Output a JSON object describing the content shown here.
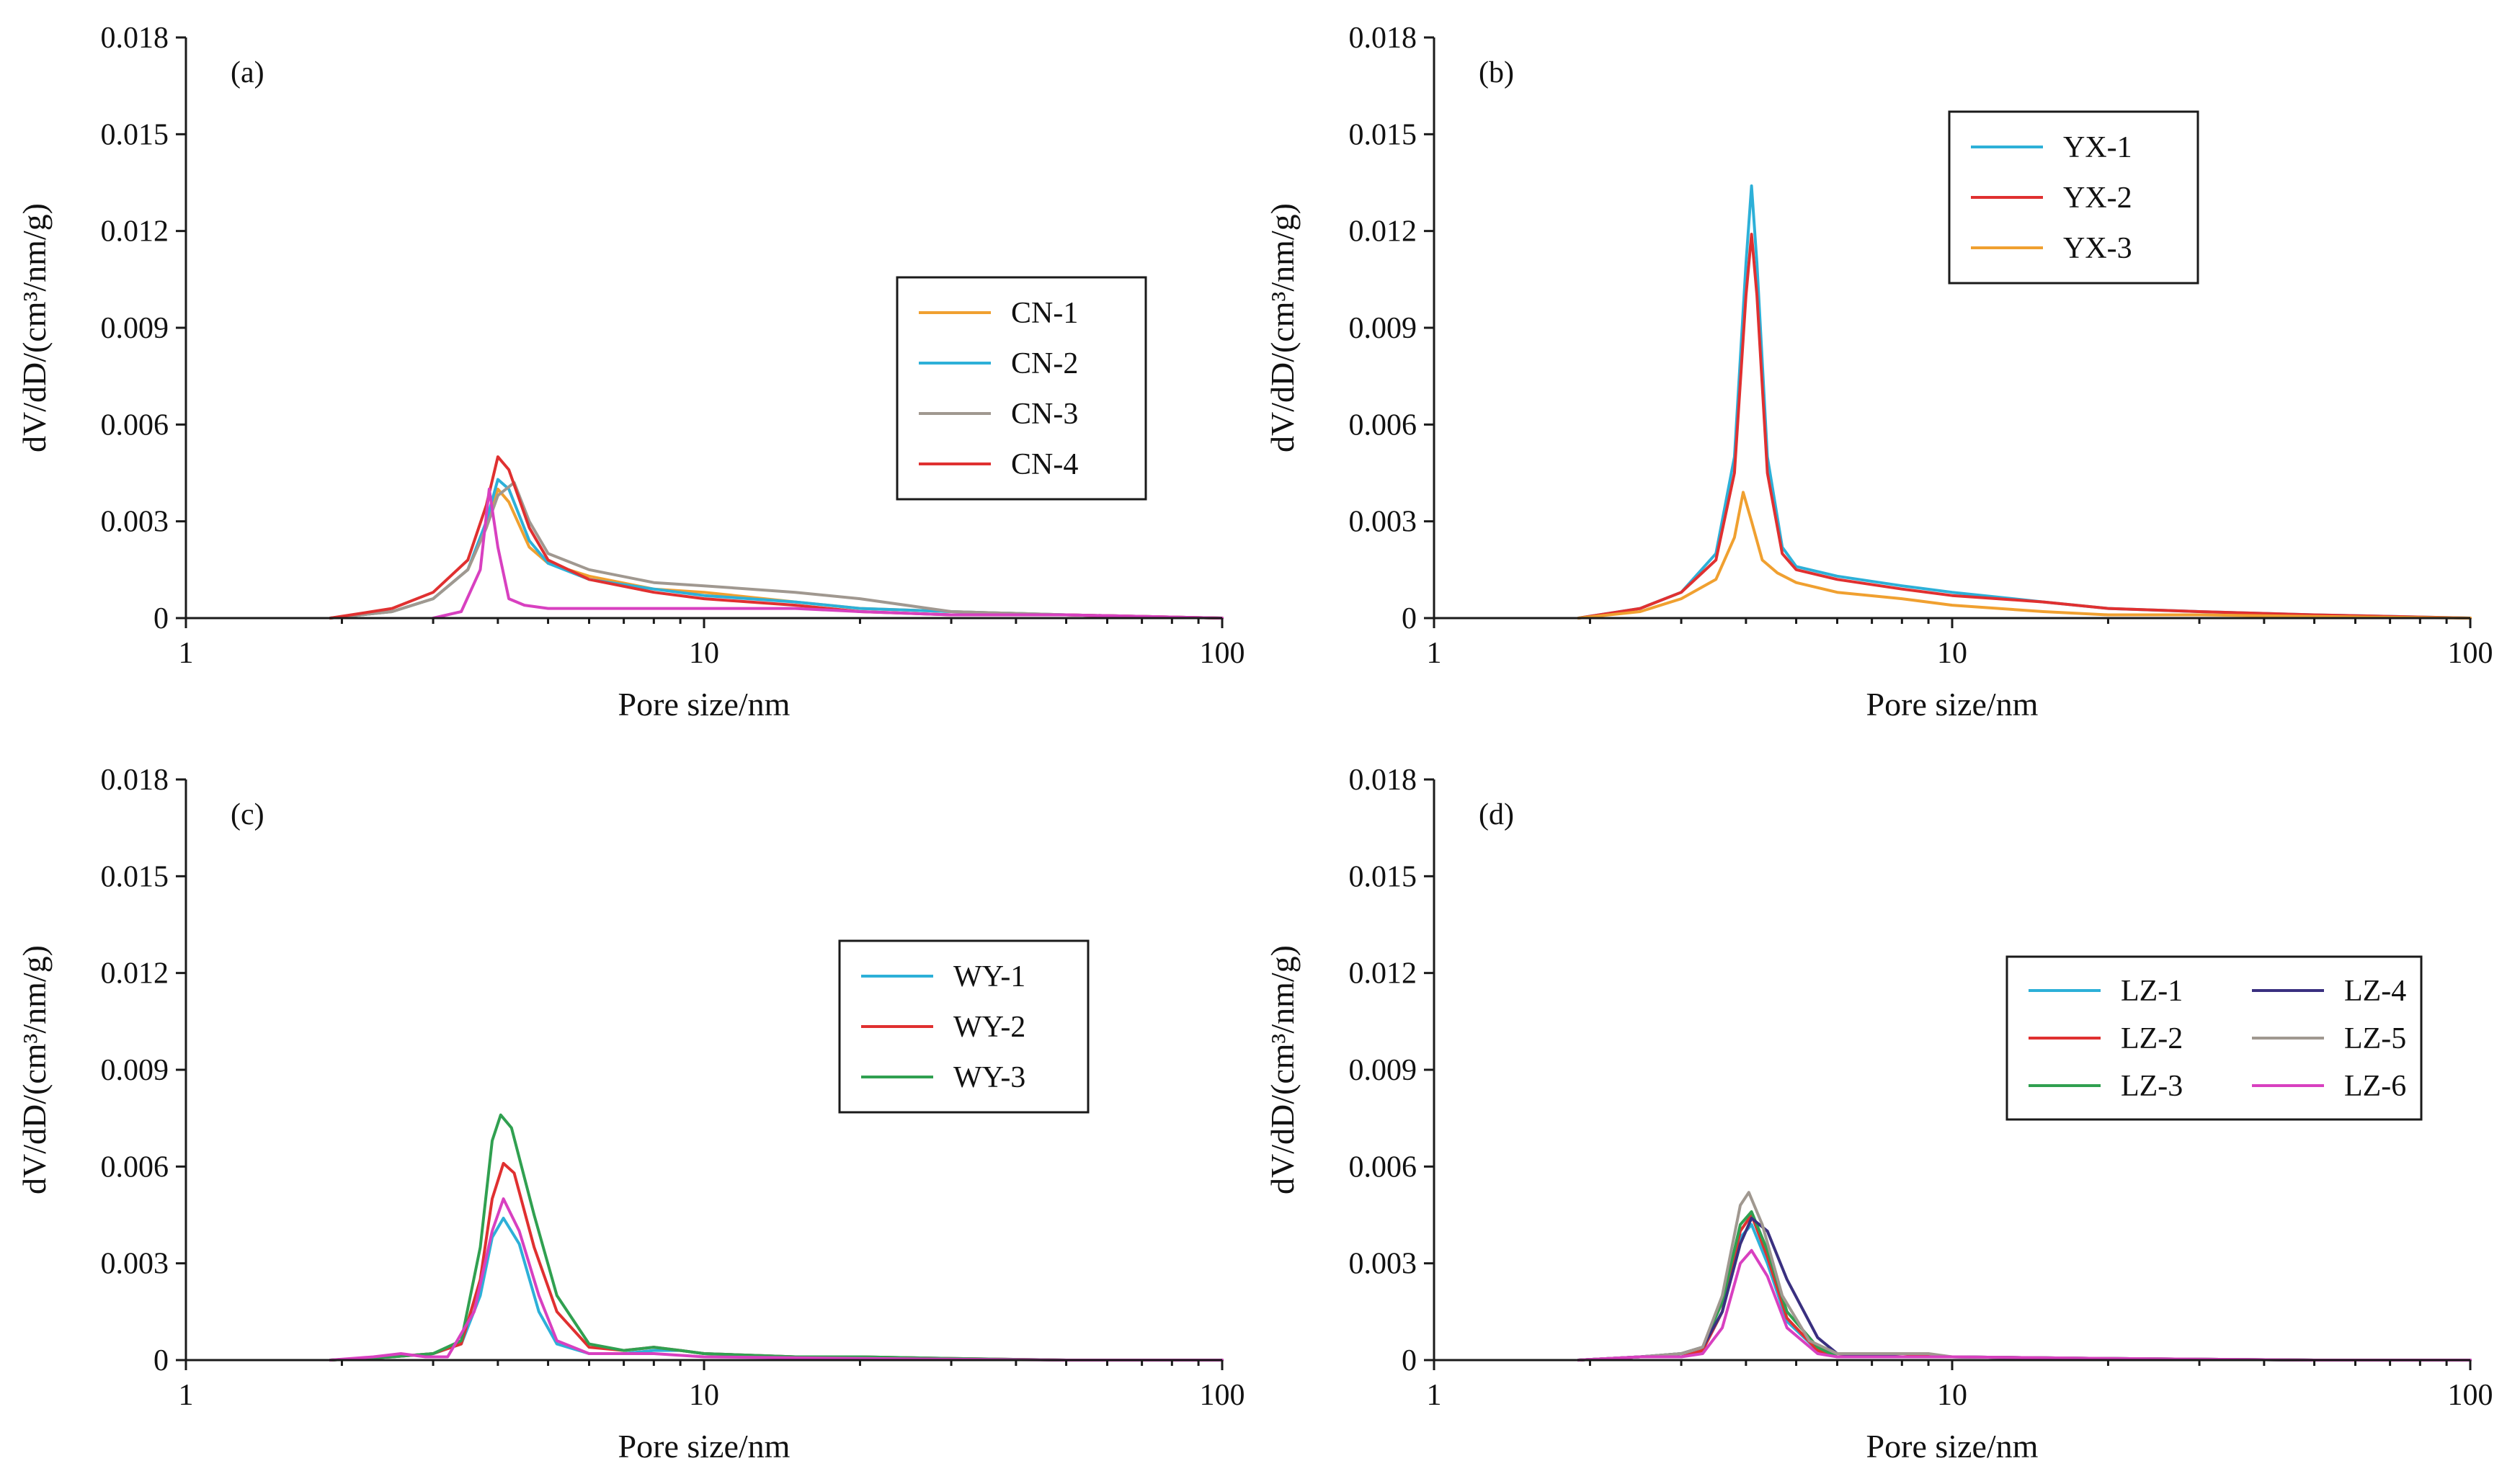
{
  "chart_data": [
    {
      "type": "line",
      "panel": "(a)",
      "xlabel": "Pore size/nm",
      "ylabel": "dV/dD/(cm³/nm/g)",
      "x_scale": "log",
      "xlim": [
        1,
        100
      ],
      "ylim": [
        0,
        0.018
      ],
      "x_ticks": [
        "1",
        "10",
        "100"
      ],
      "y_ticks": [
        "0",
        "0.003",
        "0.006",
        "0.009",
        "0.012",
        "0.015",
        "0.018"
      ],
      "legend_position": "center-right",
      "legend_columns": 1,
      "series": [
        {
          "name": "CN-1",
          "color": "#F0A030",
          "x": [
            1.9,
            2.5,
            3.0,
            3.5,
            3.8,
            4.0,
            4.2,
            4.6,
            5.0,
            6.0,
            8.0,
            10,
            15,
            20,
            30,
            50,
            100
          ],
          "y": [
            0,
            0.0002,
            0.0006,
            0.0015,
            0.0028,
            0.004,
            0.0036,
            0.0022,
            0.0017,
            0.0013,
            0.0009,
            0.0008,
            0.0005,
            0.0003,
            0.0002,
            0.0001,
            0
          ]
        },
        {
          "name": "CN-2",
          "color": "#2DB0D8",
          "x": [
            1.9,
            2.5,
            3.0,
            3.5,
            3.8,
            4.0,
            4.2,
            4.6,
            5.0,
            6.0,
            8.0,
            10,
            15,
            20,
            30,
            50,
            100
          ],
          "y": [
            0,
            0.0002,
            0.0006,
            0.0015,
            0.003,
            0.0043,
            0.004,
            0.0024,
            0.0017,
            0.0012,
            0.0009,
            0.0007,
            0.0005,
            0.0003,
            0.0002,
            0.0001,
            0
          ]
        },
        {
          "name": "CN-3",
          "color": "#A09890",
          "x": [
            1.9,
            2.5,
            3.0,
            3.5,
            3.8,
            4.0,
            4.3,
            4.6,
            5.0,
            6.0,
            8.0,
            10,
            15,
            20,
            30,
            50,
            100
          ],
          "y": [
            0,
            0.0002,
            0.0006,
            0.0015,
            0.0028,
            0.0038,
            0.0042,
            0.003,
            0.002,
            0.0015,
            0.0011,
            0.001,
            0.0008,
            0.0006,
            0.0002,
            0.0001,
            0
          ]
        },
        {
          "name": "CN-4",
          "color": "#E03030",
          "x": [
            1.9,
            2.5,
            3.0,
            3.5,
            3.8,
            4.0,
            4.2,
            4.6,
            5.0,
            6.0,
            8.0,
            10,
            15,
            20,
            30,
            50,
            100
          ],
          "y": [
            0,
            0.0003,
            0.0008,
            0.0018,
            0.0035,
            0.005,
            0.0046,
            0.0028,
            0.0018,
            0.0012,
            0.0008,
            0.0006,
            0.0004,
            0.0002,
            0.0001,
            0.0001,
            0
          ]
        },
        {
          "name": "",
          "color": "#D840C0",
          "x": [
            3.0,
            3.4,
            3.7,
            3.85,
            4.0,
            4.2,
            4.5,
            5.0,
            6.0,
            8.0,
            10,
            15,
            20,
            30,
            50,
            100
          ],
          "y": [
            0,
            0.0002,
            0.0015,
            0.004,
            0.0022,
            0.0006,
            0.0004,
            0.0003,
            0.0003,
            0.0003,
            0.0003,
            0.0003,
            0.0002,
            0.0001,
            0.0001,
            0
          ]
        }
      ]
    },
    {
      "type": "line",
      "panel": "(b)",
      "xlabel": "Pore size/nm",
      "ylabel": "dV/dD/(cm³/nm/g)",
      "x_scale": "log",
      "xlim": [
        1,
        100
      ],
      "ylim": [
        0,
        0.018
      ],
      "x_ticks": [
        "1",
        "10",
        "100"
      ],
      "y_ticks": [
        "0",
        "0.003",
        "0.006",
        "0.009",
        "0.012",
        "0.015",
        "0.018"
      ],
      "legend_position": "top-right",
      "legend_columns": 1,
      "series": [
        {
          "name": "YX-1",
          "color": "#2DB0D8",
          "x": [
            1.9,
            2.5,
            3.0,
            3.5,
            3.8,
            4.0,
            4.1,
            4.2,
            4.4,
            4.7,
            5.0,
            6.0,
            8.0,
            10,
            15,
            20,
            30,
            50,
            100
          ],
          "y": [
            0,
            0.0003,
            0.0008,
            0.002,
            0.005,
            0.011,
            0.0134,
            0.011,
            0.005,
            0.0022,
            0.0016,
            0.0013,
            0.001,
            0.0008,
            0.0005,
            0.0003,
            0.0002,
            0.0001,
            0
          ]
        },
        {
          "name": "YX-2",
          "color": "#E03030",
          "x": [
            1.9,
            2.5,
            3.0,
            3.5,
            3.8,
            4.0,
            4.1,
            4.2,
            4.4,
            4.7,
            5.0,
            6.0,
            8.0,
            10,
            15,
            20,
            30,
            50,
            100
          ],
          "y": [
            0,
            0.0003,
            0.0008,
            0.0018,
            0.0045,
            0.01,
            0.0119,
            0.01,
            0.0045,
            0.002,
            0.0015,
            0.0012,
            0.0009,
            0.0007,
            0.0005,
            0.0003,
            0.0002,
            0.0001,
            0
          ]
        },
        {
          "name": "YX-3",
          "color": "#F0A030",
          "x": [
            1.9,
            2.5,
            3.0,
            3.5,
            3.8,
            3.95,
            4.1,
            4.3,
            4.6,
            5.0,
            6.0,
            8.0,
            10,
            15,
            20,
            30,
            50,
            100
          ],
          "y": [
            0,
            0.0002,
            0.0006,
            0.0012,
            0.0025,
            0.0039,
            0.003,
            0.0018,
            0.0014,
            0.0011,
            0.0008,
            0.0006,
            0.0004,
            0.0002,
            0.0001,
            0.0001,
            5e-05,
            0
          ]
        }
      ]
    },
    {
      "type": "line",
      "panel": "(c)",
      "xlabel": "Pore size/nm",
      "ylabel": "dV/dD/(cm³/nm/g)",
      "x_scale": "log",
      "xlim": [
        1,
        100
      ],
      "ylim": [
        0,
        0.018
      ],
      "x_ticks": [
        "1",
        "10",
        "100"
      ],
      "y_ticks": [
        "0",
        "0.003",
        "0.006",
        "0.009",
        "0.012",
        "0.015",
        "0.018"
      ],
      "legend_position": "center-right",
      "legend_columns": 1,
      "series": [
        {
          "name": "WY-1",
          "color": "#2DB0D8",
          "x": [
            1.9,
            2.5,
            3.0,
            3.4,
            3.7,
            3.9,
            4.1,
            4.4,
            4.8,
            5.2,
            6.0,
            7.0,
            8.0,
            9.0,
            10,
            15,
            20,
            30,
            50,
            100
          ],
          "y": [
            0,
            0.0001,
            0.0002,
            0.0005,
            0.002,
            0.0038,
            0.0044,
            0.0036,
            0.0015,
            0.0005,
            0.0002,
            0.0002,
            0.0003,
            0.0003,
            0.0002,
            0.0001,
            0.0001,
            5e-05,
            0,
            0
          ]
        },
        {
          "name": "WY-2",
          "color": "#E03030",
          "x": [
            1.9,
            2.5,
            3.0,
            3.4,
            3.7,
            3.9,
            4.1,
            4.3,
            4.7,
            5.2,
            6.0,
            7.0,
            8.0,
            9.0,
            10,
            15,
            20,
            30,
            50,
            100
          ],
          "y": [
            0,
            0.0001,
            0.0002,
            0.0005,
            0.0025,
            0.005,
            0.0061,
            0.0058,
            0.0035,
            0.0015,
            0.0004,
            0.0003,
            0.0004,
            0.0003,
            0.0002,
            0.0001,
            0.0001,
            5e-05,
            0,
            0
          ]
        },
        {
          "name": "WY-3",
          "color": "#30A050",
          "x": [
            1.9,
            2.5,
            3.0,
            3.4,
            3.7,
            3.9,
            4.05,
            4.25,
            4.7,
            5.2,
            6.0,
            7.0,
            8.0,
            9.0,
            10,
            15,
            20,
            30,
            50,
            100
          ],
          "y": [
            0,
            0.0001,
            0.0002,
            0.0006,
            0.0035,
            0.0068,
            0.0076,
            0.0072,
            0.0045,
            0.002,
            0.0005,
            0.0003,
            0.0004,
            0.0003,
            0.0002,
            0.0001,
            0.0001,
            5e-05,
            0,
            0
          ]
        },
        {
          "name": "",
          "color": "#D840C0",
          "x": [
            1.9,
            2.3,
            2.6,
            2.9,
            3.2,
            3.6,
            3.9,
            4.1,
            4.4,
            4.8,
            5.2,
            6.0,
            8.0,
            10,
            20,
            50,
            100
          ],
          "y": [
            0,
            0.0001,
            0.0002,
            0.0001,
            0.0001,
            0.0015,
            0.004,
            0.005,
            0.004,
            0.002,
            0.0006,
            0.0002,
            0.0002,
            0.0001,
            5e-05,
            0,
            0
          ]
        }
      ]
    },
    {
      "type": "line",
      "panel": "(d)",
      "xlabel": "Pore size/nm",
      "ylabel": "dV/dD/(cm³/nm/g)",
      "x_scale": "log",
      "xlim": [
        1,
        100
      ],
      "ylim": [
        0,
        0.018
      ],
      "x_ticks": [
        "1",
        "10",
        "100"
      ],
      "y_ticks": [
        "0",
        "0.003",
        "0.006",
        "0.009",
        "0.012",
        "0.015",
        "0.018"
      ],
      "legend_position": "center-right",
      "legend_columns": 2,
      "series": [
        {
          "name": "LZ-1",
          "color": "#2DB0D8",
          "x": [
            1.9,
            2.5,
            3.0,
            3.3,
            3.6,
            3.9,
            4.1,
            4.4,
            4.8,
            5.5,
            6.0,
            8.0,
            10,
            20,
            50,
            100
          ],
          "y": [
            0,
            0.0001,
            0.0001,
            0.0003,
            0.0015,
            0.0038,
            0.0042,
            0.003,
            0.0012,
            0.0003,
            0.0001,
            0.0001,
            0.0001,
            5e-05,
            0,
            0
          ]
        },
        {
          "name": "LZ-2",
          "color": "#E03030",
          "x": [
            1.9,
            2.5,
            3.0,
            3.3,
            3.6,
            3.9,
            4.1,
            4.4,
            4.8,
            5.5,
            6.0,
            8.0,
            10,
            20,
            50,
            100
          ],
          "y": [
            0,
            0.0001,
            0.0001,
            0.0003,
            0.0015,
            0.004,
            0.0045,
            0.0032,
            0.0013,
            0.0003,
            0.0001,
            0.0002,
            0.0001,
            5e-05,
            0,
            0
          ]
        },
        {
          "name": "LZ-3",
          "color": "#30A050",
          "x": [
            1.9,
            2.5,
            3.0,
            3.3,
            3.6,
            3.9,
            4.1,
            4.4,
            4.8,
            5.5,
            6.0,
            8.0,
            10,
            20,
            50,
            100
          ],
          "y": [
            0,
            0.0001,
            0.0002,
            0.0004,
            0.0018,
            0.0042,
            0.0046,
            0.0034,
            0.0015,
            0.0004,
            0.0001,
            0.0001,
            0.0001,
            5e-05,
            0,
            0
          ]
        },
        {
          "name": "LZ-4",
          "color": "#3A3080",
          "x": [
            1.9,
            2.5,
            3.0,
            3.3,
            3.6,
            3.9,
            4.1,
            4.4,
            4.8,
            5.5,
            6.0,
            8.0,
            10,
            20,
            50,
            100
          ],
          "y": [
            0,
            0.0001,
            0.0002,
            0.0004,
            0.0015,
            0.0036,
            0.0044,
            0.004,
            0.0025,
            0.0007,
            0.0002,
            0.0001,
            0.0001,
            5e-05,
            0,
            0
          ]
        },
        {
          "name": "LZ-5",
          "color": "#A09890",
          "x": [
            1.9,
            2.5,
            3.0,
            3.3,
            3.6,
            3.9,
            4.05,
            4.3,
            4.7,
            5.3,
            6.0,
            8.0,
            9.0,
            10,
            20,
            50,
            100
          ],
          "y": [
            0,
            0.0001,
            0.0002,
            0.0004,
            0.002,
            0.0048,
            0.0052,
            0.0042,
            0.002,
            0.0006,
            0.0002,
            0.0002,
            0.0002,
            0.0001,
            5e-05,
            0,
            0
          ]
        },
        {
          "name": "LZ-6",
          "color": "#D840C0",
          "x": [
            1.9,
            2.5,
            3.0,
            3.3,
            3.6,
            3.9,
            4.1,
            4.4,
            4.8,
            5.5,
            6.0,
            8.0,
            10,
            20,
            50,
            100
          ],
          "y": [
            0,
            0.0001,
            0.0001,
            0.0002,
            0.001,
            0.003,
            0.0034,
            0.0026,
            0.001,
            0.0002,
            0.0001,
            0.0001,
            0.0001,
            5e-05,
            0,
            0
          ]
        }
      ]
    }
  ]
}
